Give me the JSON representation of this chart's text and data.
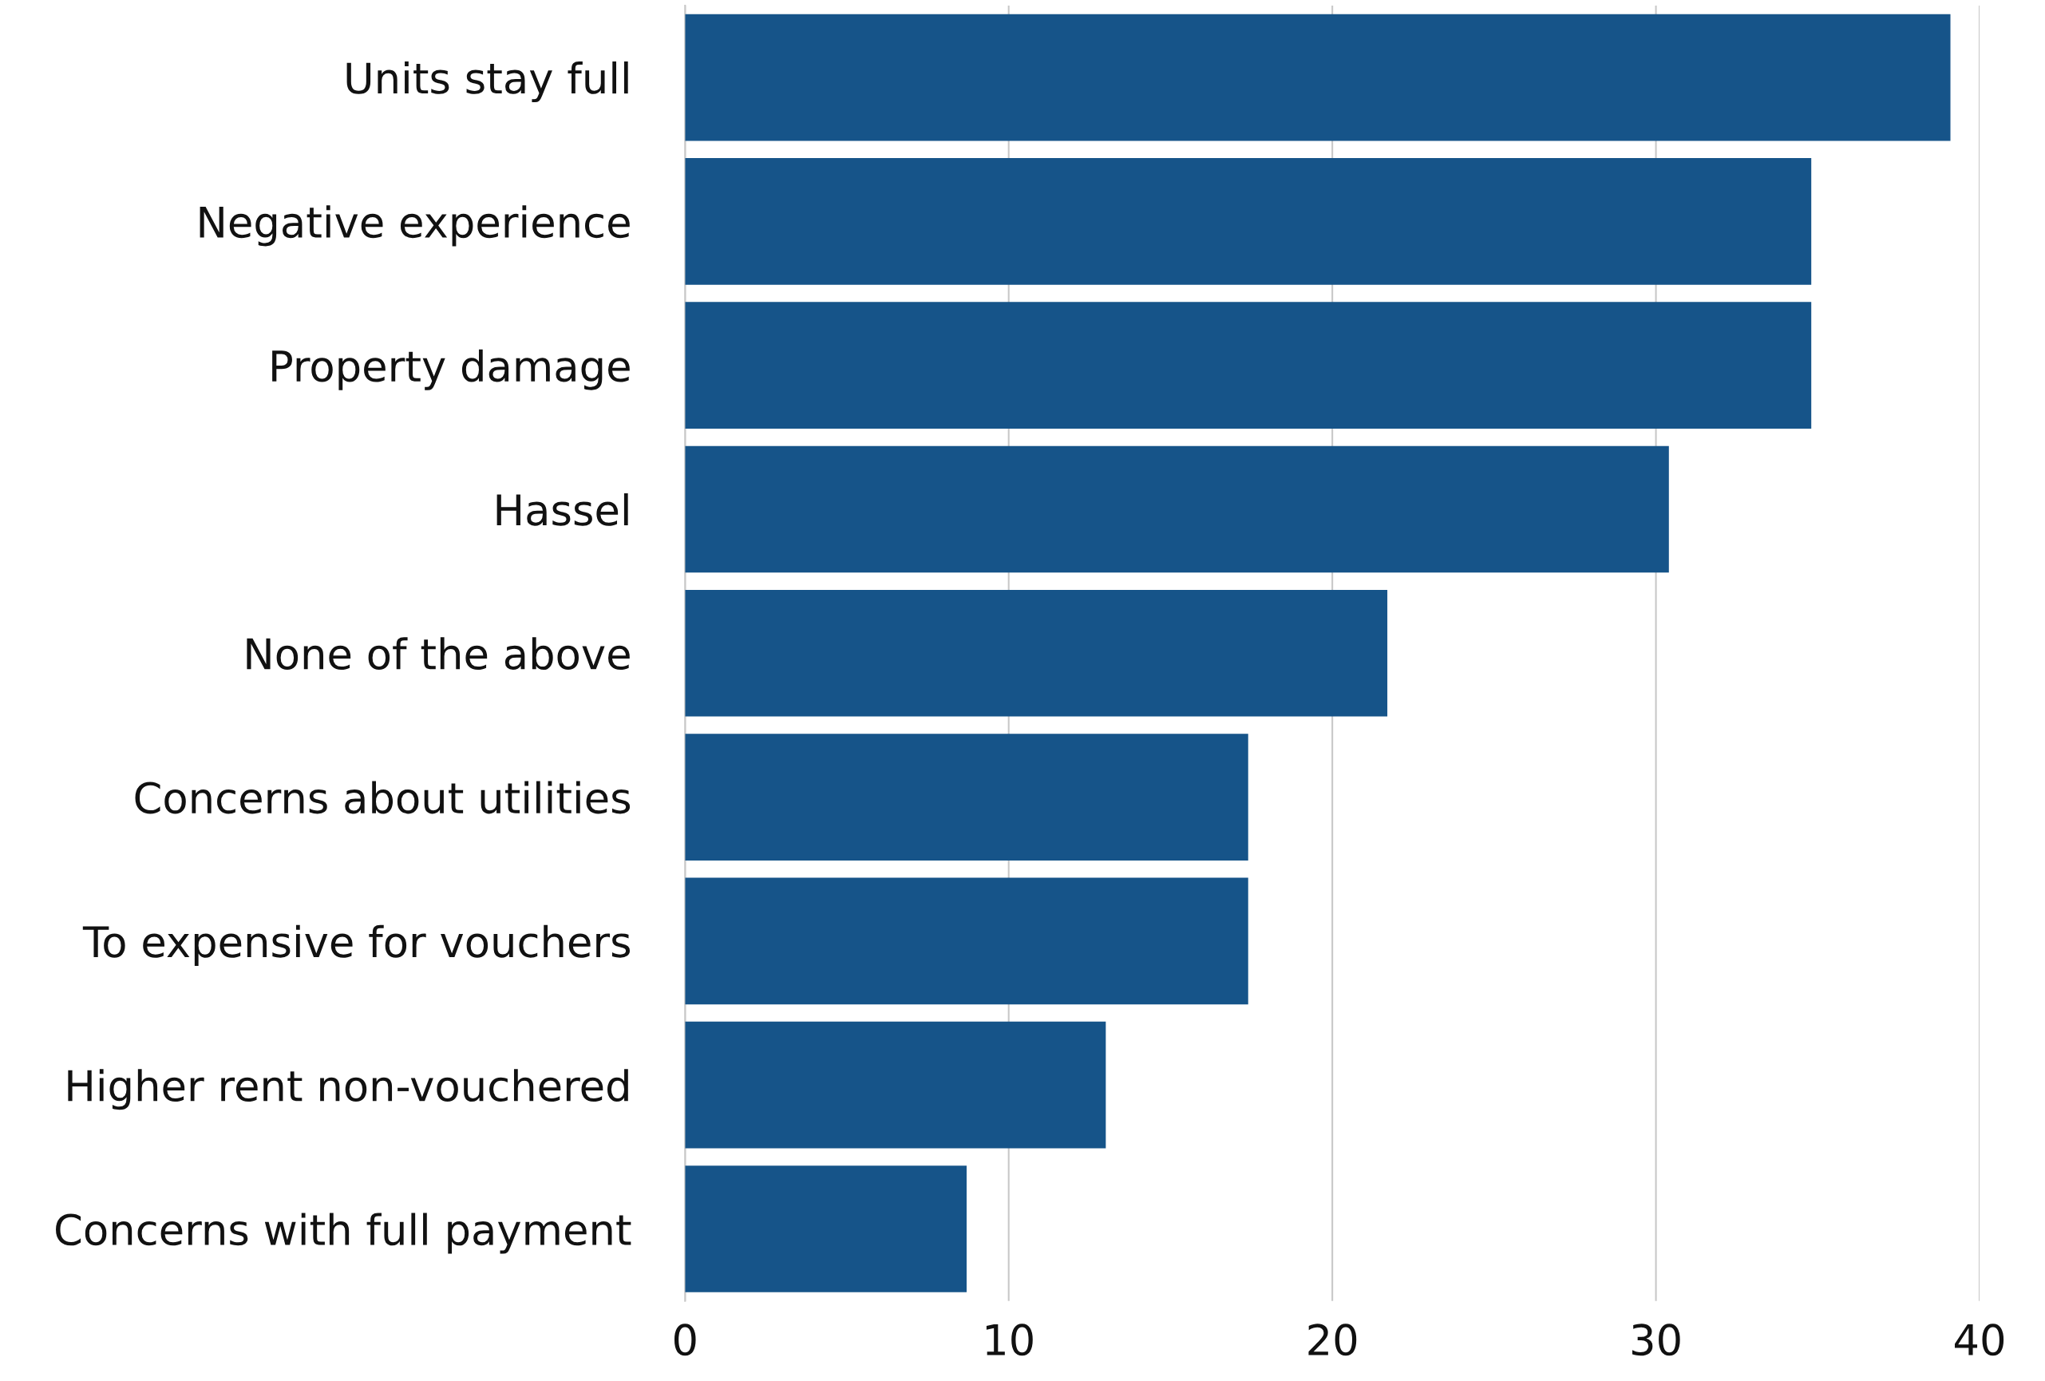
{
  "chart_data": {
    "type": "bar",
    "orientation": "horizontal",
    "categories": [
      "Units stay full",
      "Negative experience",
      "Property damage",
      "Hassel",
      "None of the above",
      "Concerns about utilities",
      "To expensive for vouchers",
      "Higher rent non-vouchered",
      "Concerns with full payment"
    ],
    "values": [
      39.1,
      34.8,
      34.8,
      30.4,
      21.7,
      17.4,
      17.4,
      13.0,
      8.7
    ],
    "color": "#165489",
    "xlim": [
      0,
      40
    ],
    "xticks": [
      0,
      10,
      20,
      30,
      40
    ],
    "grid": "x"
  }
}
